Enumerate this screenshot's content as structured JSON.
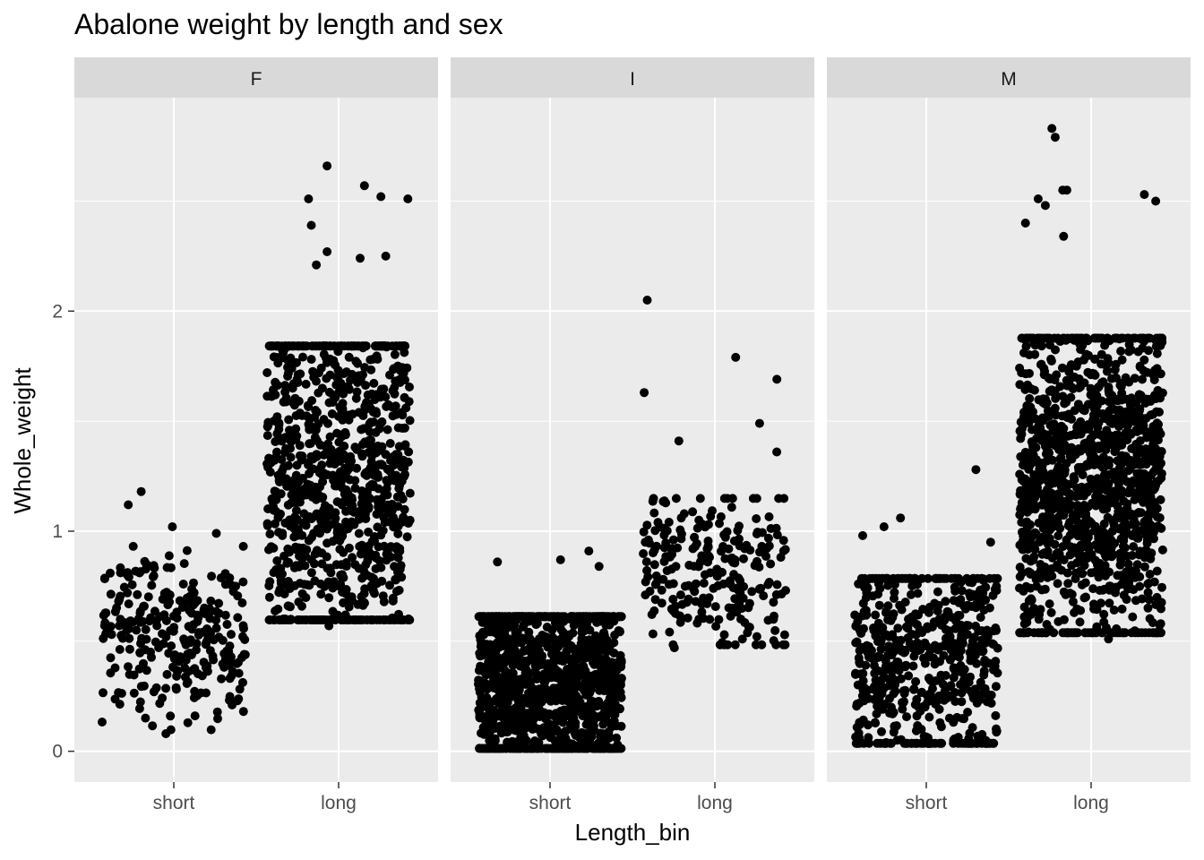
{
  "chart_data": {
    "type": "scatter",
    "title": "Abalone weight by length and sex",
    "xlabel": "Length_bin",
    "ylabel": "Whole_weight",
    "categories": [
      "short",
      "long"
    ],
    "yticks": [
      0,
      1,
      2
    ],
    "ylim": [
      -0.14,
      2.97
    ],
    "grid": true,
    "jitter": true,
    "colors": {
      "panel_background": "#ebebeb",
      "strip_background": "#d9d9d9",
      "grid": "#ffffff",
      "point": "#000000"
    },
    "facets": [
      {
        "label": "F",
        "groups": [
          {
            "category": "short",
            "count": 290,
            "ymin": 0.08,
            "ymax": 1.18,
            "q1": 0.38,
            "q3": 0.67,
            "outliers": [
              1.18,
              1.12,
              1.02,
              0.99,
              0.08
            ]
          },
          {
            "category": "long",
            "count": 1000,
            "ymin": 0.57,
            "ymax": 2.66,
            "q1": 0.92,
            "q3": 1.55,
            "outliers": [
              2.66,
              2.57,
              2.52,
              2.51,
              2.51,
              2.39,
              2.27,
              2.25,
              2.24,
              2.21,
              0.57
            ]
          }
        ]
      },
      {
        "label": "I",
        "groups": [
          {
            "category": "short",
            "count": 1200,
            "ymin": 0.0,
            "ymax": 0.91,
            "q1": 0.14,
            "q3": 0.5,
            "outliers": [
              0.91,
              0.87,
              0.86,
              0.84
            ]
          },
          {
            "category": "long",
            "count": 250,
            "ymin": 0.47,
            "ymax": 2.05,
            "q1": 0.7,
            "q3": 0.95,
            "outliers": [
              2.05,
              1.79,
              1.69,
              1.63,
              1.49,
              1.41,
              1.36,
              0.47
            ]
          }
        ]
      },
      {
        "label": "M",
        "groups": [
          {
            "category": "short",
            "count": 580,
            "ymin": 0.02,
            "ymax": 1.28,
            "q1": 0.22,
            "q3": 0.62,
            "outliers": [
              1.28,
              1.06,
              1.02,
              0.98,
              0.95
            ]
          },
          {
            "category": "long",
            "count": 1300,
            "ymin": 0.51,
            "ymax": 2.83,
            "q1": 0.95,
            "q3": 1.5,
            "outliers": [
              2.83,
              2.79,
              2.55,
              2.55,
              2.53,
              2.51,
              2.5,
              2.48,
              2.4,
              2.34,
              0.51
            ]
          }
        ]
      }
    ]
  }
}
